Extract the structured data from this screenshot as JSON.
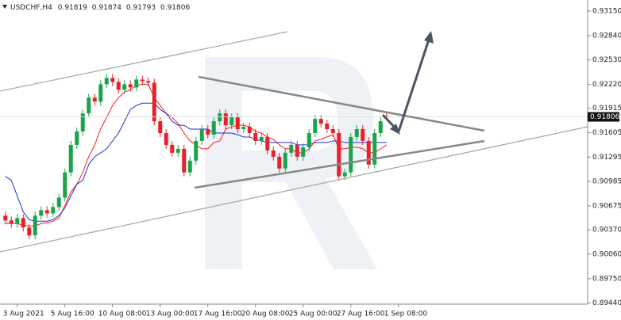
{
  "chart_data": {
    "type": "candlestick",
    "symbol": "USDCHF,H4",
    "categories": [
      null,
      null,
      "3 Aug 2021",
      null,
      null,
      null,
      null,
      null,
      null,
      null,
      "5 Aug 16:00",
      null,
      null,
      null,
      null,
      null,
      null,
      null,
      "10 Aug 08:00",
      null,
      null,
      null,
      null,
      null,
      null,
      null,
      "13 Aug 00:00",
      null,
      null,
      null,
      null,
      null,
      null,
      null,
      "17 Aug 16:00",
      null,
      null,
      null,
      null,
      null,
      null,
      null,
      "20 Aug 08:00",
      null,
      null,
      null,
      null,
      null,
      null,
      null,
      "25 Aug 00:00",
      null,
      null,
      null,
      null,
      null,
      null,
      null,
      "27 Aug 16:00",
      null,
      null,
      null,
      null,
      null,
      null,
      null,
      "1 Sep 08:00"
    ],
    "open": [
      0.9055,
      0.9049,
      0.9045,
      0.9052,
      0.904,
      0.903,
      0.9055,
      0.9062,
      0.9058,
      0.9066,
      0.9078,
      0.911,
      0.9145,
      0.9162,
      0.9185,
      0.9205,
      0.92,
      0.9222,
      0.923,
      0.9225,
      0.9215,
      0.9222,
      0.9218,
      0.9228,
      0.9226,
      0.9224,
      0.9175,
      0.916,
      0.9145,
      0.9135,
      0.914,
      0.911,
      0.9125,
      0.915,
      0.9165,
      0.9158,
      0.9175,
      0.9185,
      0.917,
      0.918,
      0.9165,
      0.9168,
      0.916,
      0.915,
      0.9155,
      0.9138,
      0.913,
      0.9115,
      0.9135,
      0.9145,
      0.913,
      0.9142,
      0.916,
      0.9178,
      0.9172,
      0.9165,
      0.916,
      0.9105,
      0.911,
      0.9155,
      0.9165,
      0.915,
      0.912,
      0.916,
      0.91819,
      null,
      null
    ],
    "high": [
      0.906,
      0.9054,
      0.9057,
      0.9057,
      0.9045,
      0.906,
      0.9067,
      0.9067,
      0.9071,
      0.9083,
      0.9115,
      0.915,
      0.9167,
      0.919,
      0.921,
      0.921,
      0.9227,
      0.9235,
      0.9235,
      0.923,
      0.9227,
      0.9227,
      0.9233,
      0.9233,
      0.9231,
      0.9229,
      0.918,
      0.9165,
      0.915,
      0.9145,
      0.9145,
      0.913,
      0.9155,
      0.917,
      0.917,
      0.918,
      0.919,
      0.919,
      0.9185,
      0.9185,
      0.9173,
      0.9173,
      0.9165,
      0.916,
      0.916,
      0.9143,
      0.9135,
      0.914,
      0.915,
      0.915,
      0.9147,
      0.9165,
      0.9183,
      0.9183,
      0.9177,
      0.917,
      0.9165,
      0.9115,
      0.916,
      0.917,
      0.917,
      0.9155,
      0.9165,
      0.918,
      0.91874,
      null,
      null
    ],
    "low": [
      0.9044,
      0.904,
      0.904,
      0.9035,
      0.9025,
      0.9025,
      0.905,
      0.9053,
      0.9053,
      0.9061,
      0.9073,
      0.9105,
      0.914,
      0.9157,
      0.918,
      0.9195,
      0.9195,
      0.9217,
      0.922,
      0.921,
      0.921,
      0.9213,
      0.9213,
      0.9221,
      0.9219,
      0.917,
      0.9155,
      0.914,
      0.913,
      0.913,
      0.9105,
      0.9105,
      0.912,
      0.9145,
      0.9153,
      0.9153,
      0.917,
      0.9165,
      0.9165,
      0.916,
      0.916,
      0.9155,
      0.9145,
      0.9145,
      0.9133,
      0.9125,
      0.911,
      0.911,
      0.913,
      0.9125,
      0.9125,
      0.9137,
      0.9155,
      0.9167,
      0.916,
      0.9155,
      0.91,
      0.91,
      0.9105,
      0.915,
      0.9145,
      0.9115,
      0.9115,
      0.9155,
      0.91793,
      null,
      null
    ],
    "close": [
      0.9049,
      0.9045,
      0.9052,
      0.904,
      0.903,
      0.9055,
      0.9062,
      0.9058,
      0.9066,
      0.9078,
      0.911,
      0.9145,
      0.9162,
      0.9185,
      0.9205,
      0.92,
      0.9222,
      0.923,
      0.9225,
      0.9215,
      0.9222,
      0.9218,
      0.9228,
      0.9226,
      0.9224,
      0.9175,
      0.916,
      0.9145,
      0.9135,
      0.914,
      0.911,
      0.9125,
      0.915,
      0.9165,
      0.9158,
      0.9175,
      0.9185,
      0.917,
      0.918,
      0.9165,
      0.9168,
      0.916,
      0.915,
      0.9155,
      0.9138,
      0.913,
      0.9115,
      0.9135,
      0.9145,
      0.913,
      0.9142,
      0.916,
      0.9178,
      0.9172,
      0.9165,
      0.916,
      0.9105,
      0.911,
      0.9155,
      0.9165,
      0.915,
      0.912,
      0.916,
      0.9175,
      0.91806,
      null,
      null
    ],
    "up_color": "#1aa34a",
    "down_color": "#e8202a",
    "lines": [
      {
        "color": "#ff1a1a",
        "values": [
          0.9045,
          0.9045,
          0.9045,
          0.9043,
          0.9042,
          0.9042,
          0.9045,
          0.9046,
          0.9048,
          0.9052,
          0.9068,
          0.9085,
          0.9095,
          0.911,
          0.913,
          0.9145,
          0.9165,
          0.918,
          0.9195,
          0.9205,
          0.9212,
          0.9215,
          0.922,
          0.9222,
          0.9222,
          0.9205,
          0.9195,
          0.9185,
          0.918,
          0.9172,
          0.916,
          0.915,
          0.9145,
          0.914,
          0.914,
          0.9148,
          0.915,
          0.9165,
          0.9168,
          0.917,
          0.917,
          0.9168,
          0.9162,
          0.916,
          0.9155,
          0.9152,
          0.9145,
          0.914,
          0.914,
          0.9135,
          0.9135,
          0.914,
          0.915,
          0.9152,
          0.9155,
          0.9158,
          0.914,
          0.914,
          0.9142,
          0.9142,
          0.914,
          0.9135,
          0.9135,
          0.914,
          0.9145,
          null,
          null
        ]
      },
      {
        "color": "#1f2fd6",
        "values": [
          0.9105,
          0.91,
          0.908,
          0.906,
          0.905,
          0.9048,
          0.9048,
          0.9048,
          0.905,
          0.9055,
          0.9065,
          0.908,
          0.9095,
          0.91,
          0.912,
          0.913,
          0.9135,
          0.914,
          0.915,
          0.916,
          0.9175,
          0.919,
          0.9195,
          0.9198,
          0.9198,
          0.9198,
          0.919,
          0.9185,
          0.9175,
          0.917,
          0.917,
          0.9165,
          0.9165,
          0.9165,
          0.9165,
          0.916,
          0.916,
          0.916,
          0.916,
          0.9158,
          0.9155,
          0.9155,
          0.9152,
          0.915,
          0.9148,
          0.9148,
          0.9148,
          0.9148,
          0.9148,
          0.9145,
          0.9145,
          0.9145,
          0.9148,
          0.9148,
          0.9148,
          0.915,
          0.915,
          0.9148,
          0.9148,
          0.9148,
          0.9148,
          0.9148,
          0.9148,
          0.9148,
          0.9148,
          null,
          null
        ]
      }
    ],
    "ylim": [
      0.89426,
      0.93291
    ],
    "yticks": [
      {
        "value": 0.9315,
        "label": "0.93150"
      },
      {
        "value": 0.9284,
        "label": "0.92840"
      },
      {
        "value": 0.9253,
        "label": "0.92530"
      },
      {
        "value": 0.9222,
        "label": "0.92220"
      },
      {
        "value": 0.91915,
        "label": "0.91915"
      },
      {
        "value": 0.91605,
        "label": "0.91605"
      },
      {
        "value": 0.91295,
        "label": "0.91295"
      },
      {
        "value": 0.90985,
        "label": "0.90985"
      },
      {
        "value": 0.90675,
        "label": "0.90675"
      },
      {
        "value": 0.9037,
        "label": "0.90370"
      },
      {
        "value": 0.9006,
        "label": "0.90060"
      },
      {
        "value": 0.8975,
        "label": "0.89750"
      },
      {
        "value": 0.8944,
        "label": "0.89440"
      }
    ]
  }
}
